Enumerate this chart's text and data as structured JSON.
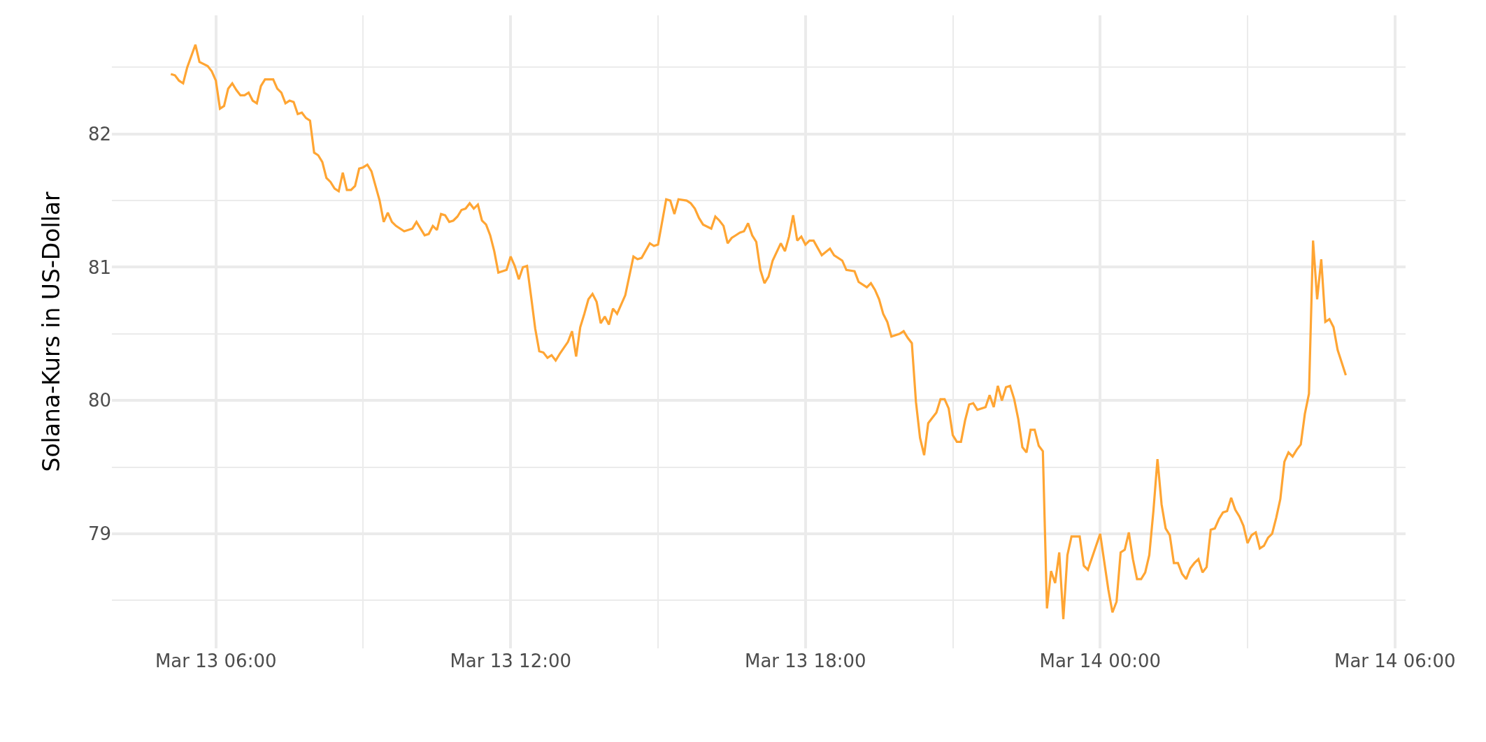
{
  "chart_data": {
    "type": "line",
    "ylabel": "Solana-Kurs in US-Dollar",
    "x": [
      "--03-13T05:05",
      "--03-13T05:10",
      "--03-13T05:15",
      "--03-13T05:20",
      "--03-13T05:25",
      "--03-13T05:35",
      "--03-13T05:40",
      "--03-13T05:50",
      "--03-13T05:55",
      "--03-13T06:00",
      "--03-13T06:05",
      "--03-13T06:10",
      "--03-13T06:15",
      "--03-13T06:20",
      "--03-13T06:25",
      "--03-13T06:30",
      "--03-13T06:35",
      "--03-13T06:40",
      "--03-13T06:45",
      "--03-13T06:50",
      "--03-13T06:55",
      "--03-13T07:00",
      "--03-13T07:10",
      "--03-13T07:15",
      "--03-13T07:20",
      "--03-13T07:25",
      "--03-13T07:30",
      "--03-13T07:35",
      "--03-13T07:40",
      "--03-13T07:45",
      "--03-13T07:50",
      "--03-13T07:55",
      "--03-13T08:00",
      "--03-13T08:05",
      "--03-13T08:10",
      "--03-13T08:15",
      "--03-13T08:20",
      "--03-13T08:25",
      "--03-13T08:30",
      "--03-13T08:35",
      "--03-13T08:40",
      "--03-13T08:45",
      "--03-13T08:50",
      "--03-13T08:55",
      "--03-13T09:00",
      "--03-13T09:05",
      "--03-13T09:10",
      "--03-13T09:15",
      "--03-13T09:20",
      "--03-13T09:25",
      "--03-13T09:30",
      "--03-13T09:35",
      "--03-13T09:40",
      "--03-13T09:50",
      "--03-13T10:00",
      "--03-13T10:05",
      "--03-13T10:15",
      "--03-13T10:20",
      "--03-13T10:25",
      "--03-13T10:30",
      "--03-13T10:35",
      "--03-13T10:40",
      "--03-13T10:45",
      "--03-13T10:50",
      "--03-13T10:55",
      "--03-13T11:00",
      "--03-13T11:05",
      "--03-13T11:10",
      "--03-13T11:15",
      "--03-13T11:20",
      "--03-13T11:25",
      "--03-13T11:30",
      "--03-13T11:35",
      "--03-13T11:40",
      "--03-13T11:45",
      "--03-13T11:50",
      "--03-13T11:55",
      "--03-13T12:00",
      "--03-13T12:05",
      "--03-13T12:10",
      "--03-13T12:15",
      "--03-13T12:20",
      "--03-13T12:25",
      "--03-13T12:30",
      "--03-13T12:35",
      "--03-13T12:40",
      "--03-13T12:45",
      "--03-13T12:50",
      "--03-13T12:55",
      "--03-13T13:00",
      "--03-13T13:10",
      "--03-13T13:15",
      "--03-13T13:20",
      "--03-13T13:25",
      "--03-13T13:30",
      "--03-13T13:35",
      "--03-13T13:40",
      "--03-13T13:45",
      "--03-13T13:50",
      "--03-13T13:55",
      "--03-13T14:00",
      "--03-13T14:05",
      "--03-13T14:10",
      "--03-13T14:15",
      "--03-13T14:20",
      "--03-13T14:30",
      "--03-13T14:35",
      "--03-13T14:40",
      "--03-13T14:50",
      "--03-13T14:55",
      "--03-13T15:00",
      "--03-13T15:10",
      "--03-13T15:15",
      "--03-13T15:20",
      "--03-13T15:25",
      "--03-13T15:35",
      "--03-13T15:40",
      "--03-13T15:45",
      "--03-13T15:50",
      "--03-13T15:55",
      "--03-13T16:05",
      "--03-13T16:10",
      "--03-13T16:15",
      "--03-13T16:20",
      "--03-13T16:25",
      "--03-13T16:30",
      "--03-13T16:35",
      "--03-13T16:40",
      "--03-13T16:45",
      "--03-13T16:50",
      "--03-13T16:55",
      "--03-13T17:00",
      "--03-13T17:05",
      "--03-13T17:10",
      "--03-13T17:15",
      "--03-13T17:20",
      "--03-13T17:30",
      "--03-13T17:35",
      "--03-13T17:40",
      "--03-13T17:45",
      "--03-13T17:50",
      "--03-13T17:55",
      "--03-13T18:00",
      "--03-13T18:05",
      "--03-13T18:10",
      "--03-13T18:20",
      "--03-13T18:30",
      "--03-13T18:35",
      "--03-13T18:45",
      "--03-13T18:50",
      "--03-13T19:00",
      "--03-13T19:05",
      "--03-13T19:15",
      "--03-13T19:20",
      "--03-13T19:25",
      "--03-13T19:30",
      "--03-13T19:35",
      "--03-13T19:40",
      "--03-13T19:45",
      "--03-13T19:55",
      "--03-13T20:00",
      "--03-13T20:05",
      "--03-13T20:10",
      "--03-13T20:15",
      "--03-13T20:20",
      "--03-13T20:25",
      "--03-13T20:30",
      "--03-13T20:35",
      "--03-13T20:40",
      "--03-13T20:45",
      "--03-13T20:50",
      "--03-13T20:55",
      "--03-13T21:00",
      "--03-13T21:05",
      "--03-13T21:10",
      "--03-13T21:15",
      "--03-13T21:20",
      "--03-13T21:25",
      "--03-13T21:30",
      "--03-13T21:40",
      "--03-13T21:45",
      "--03-13T21:50",
      "--03-13T21:55",
      "--03-13T22:00",
      "--03-13T22:05",
      "--03-13T22:10",
      "--03-13T22:15",
      "--03-13T22:20",
      "--03-13T22:25",
      "--03-13T22:30",
      "--03-13T22:35",
      "--03-13T22:40",
      "--03-13T22:45",
      "--03-13T22:50",
      "--03-13T22:55",
      "--03-13T23:00",
      "--03-13T23:05",
      "--03-13T23:10",
      "--03-13T23:15",
      "--03-13T23:20",
      "--03-13T23:25",
      "--03-13T23:35",
      "--03-13T23:40",
      "--03-13T23:45",
      "--03-14T00:00",
      "--03-14T00:10",
      "--03-14T00:15",
      "--03-14T00:20",
      "--03-14T00:25",
      "--03-14T00:30",
      "--03-14T00:35",
      "--03-14T00:40",
      "--03-14T00:45",
      "--03-14T00:50",
      "--03-14T00:55",
      "--03-14T01:00",
      "--03-14T01:05",
      "--03-14T01:10",
      "--03-14T01:15",
      "--03-14T01:20",
      "--03-14T01:25",
      "--03-14T01:30",
      "--03-14T01:35",
      "--03-14T01:40",
      "--03-14T01:45",
      "--03-14T01:50",
      "--03-14T01:55",
      "--03-14T02:00",
      "--03-14T02:05",
      "--03-14T02:10",
      "--03-14T02:15",
      "--03-14T02:20",
      "--03-14T02:25",
      "--03-14T02:30",
      "--03-14T02:35",
      "--03-14T02:40",
      "--03-14T02:45",
      "--03-14T02:50",
      "--03-14T02:55",
      "--03-14T03:00",
      "--03-14T03:05",
      "--03-14T03:10",
      "--03-14T03:15",
      "--03-14T03:20",
      "--03-14T03:25",
      "--03-14T03:30",
      "--03-14T03:35",
      "--03-14T03:40",
      "--03-14T03:45",
      "--03-14T03:50",
      "--03-14T03:55",
      "--03-14T04:00",
      "--03-14T04:05",
      "--03-14T04:10",
      "--03-14T04:15",
      "--03-14T04:20",
      "--03-14T04:25",
      "--03-14T04:30",
      "--03-14T04:35",
      "--03-14T04:40",
      "--03-14T04:45",
      "--03-14T04:50",
      "--03-14T05:00"
    ],
    "series": [
      {
        "color": "#ffa533",
        "values": [
          82.45,
          82.44,
          82.4,
          82.38,
          82.5,
          82.67,
          82.54,
          82.51,
          82.47,
          82.4,
          82.19,
          82.21,
          82.34,
          82.38,
          82.33,
          82.29,
          82.29,
          82.31,
          82.25,
          82.23,
          82.36,
          82.41,
          82.41,
          82.34,
          82.31,
          82.23,
          82.25,
          82.24,
          82.15,
          82.16,
          82.12,
          82.1,
          81.86,
          81.84,
          81.79,
          81.67,
          81.64,
          81.59,
          81.57,
          81.71,
          81.58,
          81.58,
          81.61,
          81.74,
          81.75,
          81.77,
          81.72,
          81.61,
          81.5,
          81.34,
          81.41,
          81.34,
          81.31,
          81.27,
          81.29,
          81.34,
          81.24,
          81.25,
          81.31,
          81.28,
          81.4,
          81.39,
          81.34,
          81.35,
          81.38,
          81.43,
          81.44,
          81.48,
          81.44,
          81.47,
          81.35,
          81.32,
          81.24,
          81.12,
          80.96,
          80.97,
          80.98,
          81.08,
          81.01,
          80.91,
          81.0,
          81.01,
          80.78,
          80.54,
          80.37,
          80.36,
          80.32,
          80.34,
          80.3,
          80.35,
          80.44,
          80.52,
          80.33,
          80.55,
          80.65,
          80.76,
          80.8,
          80.74,
          80.58,
          80.63,
          80.57,
          80.69,
          80.65,
          80.72,
          80.79,
          81.08,
          81.06,
          81.07,
          81.18,
          81.16,
          81.17,
          81.51,
          81.5,
          81.4,
          81.51,
          81.5,
          81.48,
          81.44,
          81.37,
          81.32,
          81.29,
          81.38,
          81.35,
          81.31,
          81.18,
          81.22,
          81.24,
          81.26,
          81.27,
          81.33,
          81.24,
          81.19,
          80.98,
          80.88,
          80.93,
          81.05,
          81.18,
          81.12,
          81.23,
          81.39,
          81.2,
          81.23,
          81.17,
          81.2,
          81.2,
          81.09,
          81.14,
          81.09,
          81.05,
          80.98,
          80.97,
          80.89,
          80.85,
          80.88,
          80.83,
          80.76,
          80.65,
          80.59,
          80.48,
          80.5,
          80.52,
          80.47,
          80.43,
          79.99,
          79.72,
          79.59,
          79.83,
          79.87,
          79.91,
          80.01,
          80.01,
          79.94,
          79.74,
          79.69,
          79.69,
          79.85,
          79.97,
          79.98,
          79.93,
          79.95,
          80.04,
          79.95,
          80.11,
          80.0,
          80.1,
          80.11,
          80.01,
          79.86,
          79.65,
          79.61,
          79.78,
          79.78,
          79.66,
          79.62,
          78.44,
          78.72,
          78.63,
          78.86,
          78.36,
          78.84,
          78.98,
          78.98,
          78.76,
          78.73,
          79.0,
          78.58,
          78.41,
          78.49,
          78.86,
          78.88,
          79.01,
          78.81,
          78.66,
          78.66,
          78.71,
          78.84,
          79.17,
          79.56,
          79.22,
          79.04,
          78.99,
          78.78,
          78.78,
          78.7,
          78.66,
          78.74,
          78.78,
          78.81,
          78.71,
          78.75,
          79.03,
          79.04,
          79.11,
          79.16,
          79.17,
          79.27,
          79.18,
          79.13,
          79.06,
          78.93,
          78.99,
          79.01,
          78.89,
          78.91,
          78.97,
          79.0,
          79.12,
          79.26,
          79.54,
          79.61,
          79.58,
          79.63,
          79.67,
          79.9,
          80.05,
          81.2,
          80.76,
          81.06,
          80.59,
          80.61,
          80.55,
          80.38,
          80.19
        ]
      }
    ],
    "xlim": [
      "--03-13T03:53",
      "--03-14T06:13"
    ],
    "xticks": [
      {
        "value": "--03-13T06:00",
        "label": "Mar 13 06:00"
      },
      {
        "value": "--03-13T09:00",
        "label": null
      },
      {
        "value": "--03-13T12:00",
        "label": "Mar 13 12:00"
      },
      {
        "value": "--03-13T15:00",
        "label": null
      },
      {
        "value": "--03-13T18:00",
        "label": "Mar 13 18:00"
      },
      {
        "value": "--03-13T21:00",
        "label": null
      },
      {
        "value": "--03-14T00:00",
        "label": "Mar 14 00:00"
      },
      {
        "value": "--03-14T03:00",
        "label": null
      },
      {
        "value": "--03-14T06:00",
        "label": "Mar 14 06:00"
      }
    ],
    "ylim": [
      78.14,
      82.89
    ],
    "yticks": [
      {
        "value": 78.5,
        "label": null
      },
      79,
      {
        "value": 79.5,
        "label": null
      },
      80,
      {
        "value": 80.5,
        "label": null
      },
      81,
      {
        "value": 81.5,
        "label": null
      },
      82,
      {
        "value": 82.5,
        "label": null
      }
    ],
    "grid": true,
    "marker": "none",
    "line_style": "solid"
  }
}
